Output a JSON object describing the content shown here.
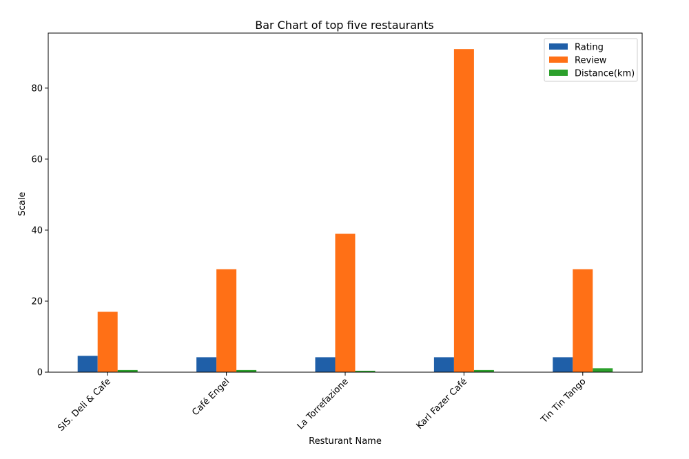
{
  "chart_data": {
    "type": "bar",
    "title": "Bar Chart of top five restaurants",
    "xlabel": "Resturant Name",
    "ylabel": "Scale",
    "categories": [
      "SIS. Deli & Cafe",
      "Café Engel",
      "La Torrefazione",
      "Karl Fazer Café",
      "Tin Tin Tango"
    ],
    "series": [
      {
        "name": "Rating",
        "color": "#1f5fa8",
        "values": [
          4.6,
          4.2,
          4.2,
          4.2,
          4.2
        ]
      },
      {
        "name": "Review",
        "color": "#ff7016",
        "values": [
          17,
          29,
          39,
          91,
          29
        ]
      },
      {
        "name": "Distance(km)",
        "color": "#2ca02c",
        "values": [
          0.6,
          0.6,
          0.4,
          0.6,
          1.1
        ]
      }
    ],
    "ylim": [
      0,
      95.5
    ],
    "yticks": [
      0,
      20,
      40,
      60,
      80
    ],
    "legend_position": "top-right",
    "grid": false
  }
}
